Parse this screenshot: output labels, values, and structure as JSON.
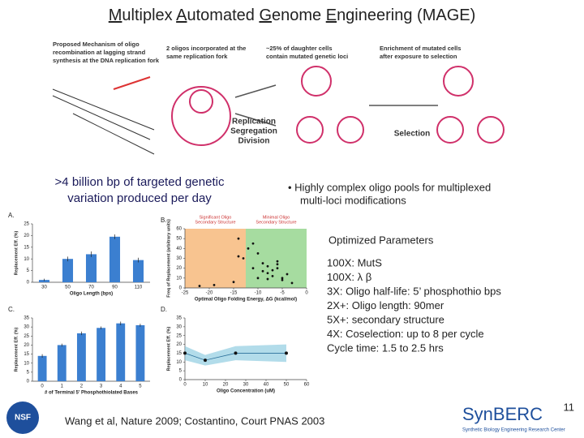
{
  "title_parts": [
    {
      "text": "M",
      "underline": true
    },
    {
      "text": "ultiplex ",
      "underline": false
    },
    {
      "text": "A",
      "underline": true
    },
    {
      "text": "utomated ",
      "underline": false
    },
    {
      "text": "G",
      "underline": true
    },
    {
      "text": "enome ",
      "underline": false
    },
    {
      "text": "E",
      "underline": true
    },
    {
      "text": "ngineering (MAGE)",
      "underline": false
    }
  ],
  "diagram": {
    "mechanism": [
      "Proposed Mechanism of oligo",
      "recombination at lagging strand",
      "synthesis at the DNA replication fork"
    ],
    "step1": [
      "2 oligos incorporated at the",
      "same replication fork"
    ],
    "step2": [
      "~25% of daughter cells",
      "contain mutated genetic loci"
    ],
    "step3": [
      "Enrichment of mutated cells",
      "after exposure to selection"
    ],
    "replication": [
      "Replication",
      "Segregation",
      "Division"
    ],
    "selection": "Selection"
  },
  "left_text": [
    ">4 billion bp of targeted genetic",
    "variation produced per day"
  ],
  "right_bullet": [
    "• Highly complex oligo pools for multiplexed",
    "multi-loci modifications"
  ],
  "params": {
    "heading": "Optimized Parameters",
    "items": [
      "100X: MutS",
      "100X: λ β",
      "3X: Oligo half-life: 5’ phosphothio bps",
      "2X+: Oligo length: 90mer",
      "5X+: secondary structure",
      "4X: Coselection: up to 8 per cycle",
      "Cycle time: 1.5 to 2.5 hrs"
    ]
  },
  "citation": "Wang  et al, Nature 2009;  Costantino, Court PNAS 2003",
  "page_number": "11",
  "logos": {
    "nsf": "NSF",
    "synberc": "SynBERC",
    "synberc_sub": "Synthetic Biology Engineering Research Center"
  },
  "chart_data": [
    {
      "type": "bar",
      "panel": "A.",
      "xlabel": "Oligo Length (bps)",
      "ylabel": "Replacement Eff. (%)",
      "categories": [
        "30",
        "50",
        "70",
        "90",
        "110"
      ],
      "values": [
        1,
        10,
        12,
        19.5,
        9.5
      ],
      "errors": [
        0.5,
        1,
        1.2,
        1,
        1
      ],
      "color": "#3b7fd0",
      "ylim": [
        0,
        25
      ],
      "yticks": [
        0,
        5,
        10,
        15,
        20,
        25
      ]
    },
    {
      "type": "scatter",
      "panel": "B.",
      "xlabel": "Optimal Oligo Folding Energy, ΔG (kcal/mol)",
      "ylabel": "Freq of Replacement (arbitrary units)",
      "x": [
        -22,
        -19,
        -15,
        -14,
        -13,
        -12,
        -11,
        -10,
        -10,
        -9,
        -8,
        -8,
        -7,
        -7,
        -6,
        -6,
        -5,
        -5,
        -4,
        -3,
        -14,
        -9,
        -11,
        -6,
        -8
      ],
      "values": [
        2,
        3,
        6,
        50,
        30,
        40,
        20,
        35,
        10,
        25,
        15,
        22,
        18,
        12,
        27,
        20,
        10,
        8,
        14,
        5,
        32,
        17,
        45,
        24,
        9
      ],
      "color": "#111111",
      "xlim": [
        -25,
        0
      ],
      "xticks": [
        -25,
        -20,
        -15,
        -10,
        -5,
        0
      ],
      "ylim": [
        0,
        60
      ],
      "yticks": [
        0,
        10,
        20,
        30,
        40,
        50,
        60
      ],
      "regions": [
        {
          "label": [
            "Significant Oligo",
            "Secondary Structure"
          ],
          "color": "#f8c490",
          "xlim": [
            -25,
            -12.5
          ]
        },
        {
          "label": [
            "Minimal Oligo",
            "Secondary Structure"
          ],
          "color": "#a6dca0",
          "xlim": [
            -12.5,
            0
          ]
        }
      ]
    },
    {
      "type": "bar",
      "panel": "C.",
      "xlabel": "# of Terminal 5' Phosphothiolated Bases",
      "ylabel": "Replacement Eff. (%)",
      "categories": [
        "0",
        "1",
        "2",
        "3",
        "4",
        "5"
      ],
      "values": [
        14,
        20,
        26.5,
        29.5,
        32,
        31
      ],
      "errors": [
        1,
        0.8,
        1,
        0.8,
        1,
        0.8
      ],
      "color": "#3b7fd0",
      "ylim": [
        0,
        35
      ],
      "yticks": [
        0,
        5,
        10,
        15,
        20,
        25,
        30,
        35
      ]
    },
    {
      "type": "line",
      "panel": "D.",
      "xlabel": "Oligo Concentration (uM)",
      "ylabel": "Replacement Eff. (%)",
      "x": [
        0,
        10,
        25,
        50
      ],
      "values": [
        15,
        11,
        15,
        15
      ],
      "errors": [
        4,
        3,
        4,
        5
      ],
      "color": "#7ec4dc",
      "xlim": [
        0,
        60
      ],
      "xticks": [
        0,
        10,
        20,
        30,
        40,
        50,
        60
      ],
      "ylim": [
        0,
        35
      ],
      "yticks": [
        0,
        5,
        10,
        15,
        20,
        25,
        30,
        35
      ]
    }
  ]
}
